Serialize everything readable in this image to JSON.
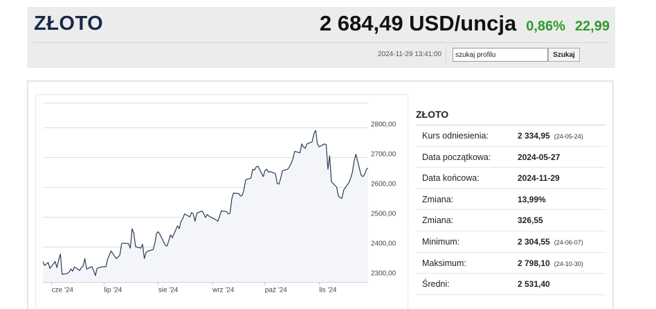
{
  "header": {
    "title": "ZŁOTO",
    "price": "2 684,49 USD/uncja",
    "change_pct": "0,86%",
    "change_abs": "22,99",
    "timestamp": "2024-11-29 13:41:00",
    "search_value": "szukaj profilu",
    "search_button": "Szukaj"
  },
  "colors": {
    "positive": "#2e9a2e",
    "title": "#182848",
    "line": "#2a3a55",
    "fill": "#f3f5f8"
  },
  "info": {
    "title": "ZŁOTO",
    "rows": [
      {
        "label": "Kurs odniesienia:",
        "value": "2 334,95",
        "date": "(24-05-24)"
      },
      {
        "label": "Data początkowa:",
        "value": "2024-05-27",
        "date": ""
      },
      {
        "label": "Data końcowa:",
        "value": "2024-11-29",
        "date": ""
      },
      {
        "label": "Zmiana:",
        "value": "13,99%",
        "date": ""
      },
      {
        "label": "Zmiana:",
        "value": "326,55",
        "date": ""
      },
      {
        "label": "Minimum:",
        "value": "2 304,55",
        "date": "(24-06-07)"
      },
      {
        "label": "Maksimum:",
        "value": "2 798,10",
        "date": "(24-10-30)"
      },
      {
        "label": "Średni:",
        "value": "2 531,40",
        "date": ""
      }
    ]
  },
  "chart_data": {
    "type": "area",
    "x_range": [
      "2024-05-27",
      "2024-11-29"
    ],
    "ylim": [
      2280,
      2880
    ],
    "y_ticks": [
      {
        "value": 2300,
        "label": "2300,00"
      },
      {
        "value": 2400,
        "label": "2400,00"
      },
      {
        "value": 2500,
        "label": "2500,00"
      },
      {
        "value": 2600,
        "label": "2600,00"
      },
      {
        "value": 2700,
        "label": "2700,00"
      },
      {
        "value": 2800,
        "label": "2800,00"
      }
    ],
    "x_ticks": [
      {
        "date": "2024-06-01",
        "label": "cze '24"
      },
      {
        "date": "2024-07-01",
        "label": "lip '24"
      },
      {
        "date": "2024-08-01",
        "label": "sie '24"
      },
      {
        "date": "2024-09-01",
        "label": "wrz '24"
      },
      {
        "date": "2024-10-01",
        "label": "paź '24"
      },
      {
        "date": "2024-11-01",
        "label": "lis '24"
      }
    ],
    "grid": true,
    "series": [
      {
        "x": [
          "2024-05-27",
          "2024-05-28",
          "2024-05-29",
          "2024-05-30",
          "2024-05-31",
          "2024-06-03",
          "2024-06-04",
          "2024-06-05",
          "2024-06-06",
          "2024-06-07",
          "2024-06-10",
          "2024-06-11",
          "2024-06-12",
          "2024-06-13",
          "2024-06-14",
          "2024-06-17",
          "2024-06-18",
          "2024-06-19",
          "2024-06-20",
          "2024-06-21",
          "2024-06-24",
          "2024-06-25",
          "2024-06-26",
          "2024-06-27",
          "2024-06-28",
          "2024-07-01",
          "2024-07-02",
          "2024-07-03",
          "2024-07-05",
          "2024-07-08",
          "2024-07-09",
          "2024-07-10",
          "2024-07-11",
          "2024-07-12",
          "2024-07-15",
          "2024-07-16",
          "2024-07-17",
          "2024-07-18",
          "2024-07-19",
          "2024-07-22",
          "2024-07-23",
          "2024-07-24",
          "2024-07-25",
          "2024-07-26",
          "2024-07-29",
          "2024-07-30",
          "2024-07-31",
          "2024-08-01",
          "2024-08-02",
          "2024-08-05",
          "2024-08-06",
          "2024-08-07",
          "2024-08-08",
          "2024-08-09",
          "2024-08-12",
          "2024-08-13",
          "2024-08-14",
          "2024-08-15",
          "2024-08-16",
          "2024-08-19",
          "2024-08-20",
          "2024-08-21",
          "2024-08-22",
          "2024-08-23",
          "2024-08-26",
          "2024-08-27",
          "2024-08-28",
          "2024-08-29",
          "2024-08-30",
          "2024-09-03",
          "2024-09-04",
          "2024-09-05",
          "2024-09-06",
          "2024-09-09",
          "2024-09-10",
          "2024-09-11",
          "2024-09-12",
          "2024-09-13",
          "2024-09-16",
          "2024-09-17",
          "2024-09-18",
          "2024-09-19",
          "2024-09-20",
          "2024-09-23",
          "2024-09-24",
          "2024-09-25",
          "2024-09-26",
          "2024-09-27",
          "2024-09-30",
          "2024-10-01",
          "2024-10-02",
          "2024-10-03",
          "2024-10-04",
          "2024-10-07",
          "2024-10-08",
          "2024-10-09",
          "2024-10-10",
          "2024-10-11",
          "2024-10-14",
          "2024-10-15",
          "2024-10-16",
          "2024-10-17",
          "2024-10-18",
          "2024-10-21",
          "2024-10-22",
          "2024-10-23",
          "2024-10-24",
          "2024-10-25",
          "2024-10-28",
          "2024-10-29",
          "2024-10-30",
          "2024-10-31",
          "2024-11-01",
          "2024-11-04",
          "2024-11-05",
          "2024-11-06",
          "2024-11-07",
          "2024-11-08",
          "2024-11-11",
          "2024-11-12",
          "2024-11-13",
          "2024-11-14",
          "2024-11-15",
          "2024-11-18",
          "2024-11-19",
          "2024-11-20",
          "2024-11-21",
          "2024-11-22",
          "2024-11-25",
          "2024-11-26",
          "2024-11-27",
          "2024-11-28",
          "2024-11-29"
        ],
        "values": [
          2350,
          2337,
          2342,
          2347,
          2327,
          2350,
          2330,
          2355,
          2375,
          2307,
          2310,
          2315,
          2325,
          2318,
          2332,
          2320,
          2330,
          2335,
          2360,
          2325,
          2333,
          2320,
          2303,
          2327,
          2330,
          2333,
          2332,
          2358,
          2385,
          2360,
          2365,
          2372,
          2410,
          2412,
          2410,
          2395,
          2460,
          2445,
          2400,
          2395,
          2408,
          2360,
          2380,
          2385,
          2390,
          2410,
          2445,
          2450,
          2440,
          2405,
          2402,
          2420,
          2440,
          2430,
          2470,
          2460,
          2485,
          2495,
          2510,
          2500,
          2515,
          2510,
          2485,
          2512,
          2520,
          2510,
          2498,
          2508,
          2502,
          2490,
          2485,
          2500,
          2520,
          2518,
          2510,
          2512,
          2560,
          2580,
          2578,
          2570,
          2572,
          2592,
          2625,
          2630,
          2660,
          2657,
          2668,
          2670,
          2635,
          2655,
          2660,
          2650,
          2652,
          2645,
          2612,
          2610,
          2630,
          2655,
          2660,
          2668,
          2680,
          2695,
          2720,
          2715,
          2745,
          2735,
          2730,
          2745,
          2752,
          2780,
          2790,
          2745,
          2735,
          2745,
          2742,
          2660,
          2705,
          2618,
          2600,
          2570,
          2565,
          2562,
          2590,
          2615,
          2630,
          2650,
          2688,
          2710,
          2640,
          2635,
          2642,
          2660,
          2664
        ]
      }
    ]
  }
}
